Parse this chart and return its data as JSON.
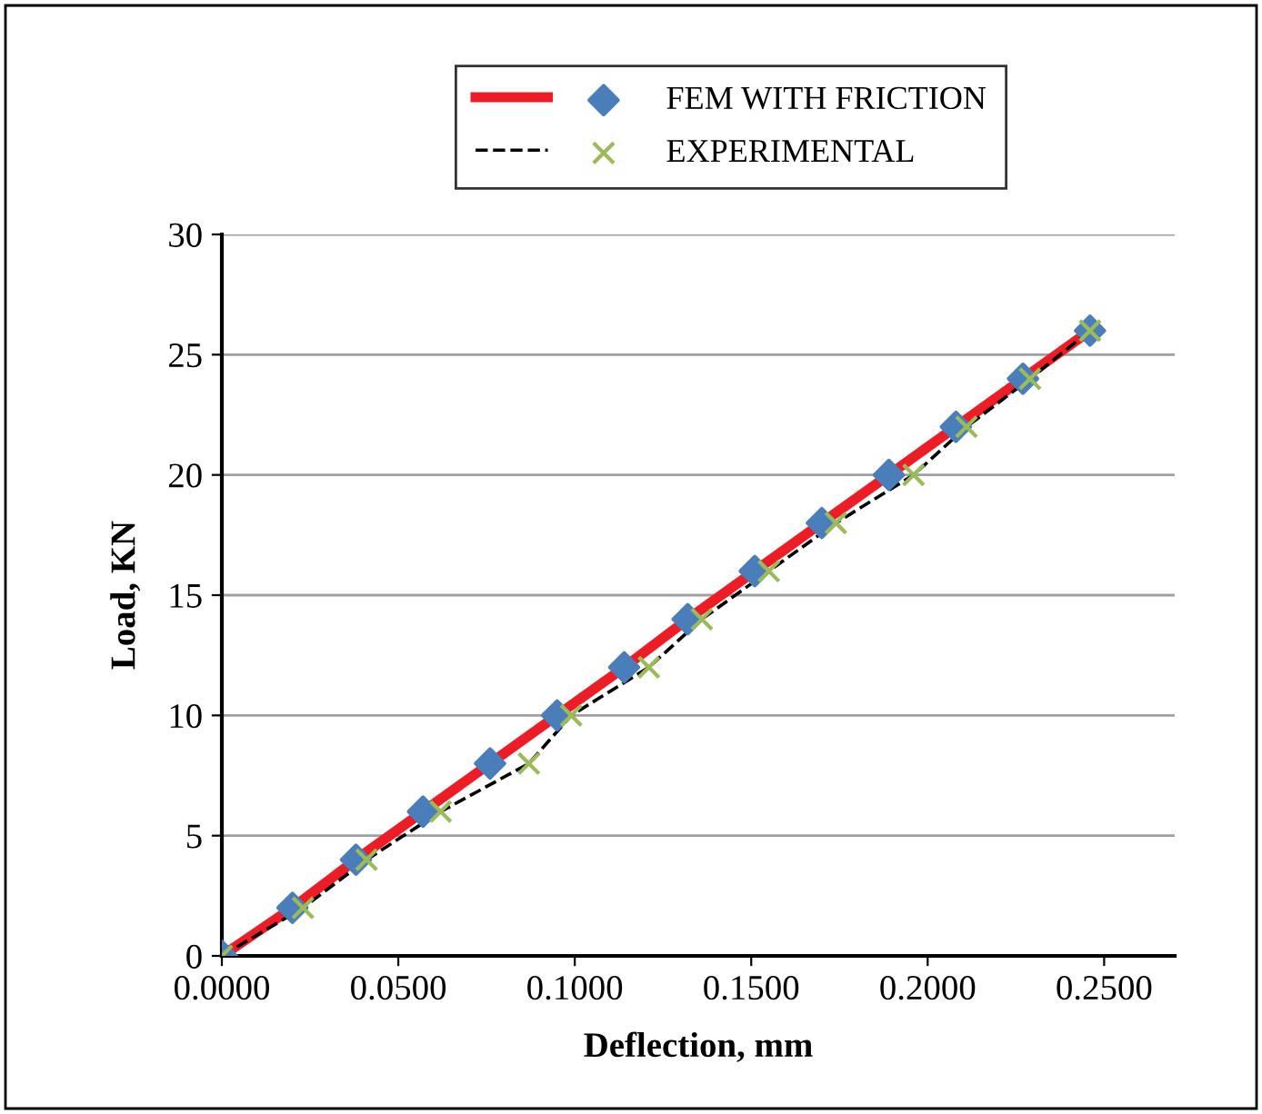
{
  "chart_data": {
    "type": "line",
    "xlabel": "Deflection, mm",
    "ylabel": "Load, KN",
    "series": [
      {
        "name": "FEM WITH FRICTION",
        "color": "#ee1c25",
        "colors": [
          "#4a7ebb",
          "#4a7ebb",
          "#4a7ebb",
          "#4a7ebb",
          "#4a7ebb",
          "#4a7ebb",
          "#4a7ebb",
          "#4a7ebb",
          "#4a7ebb",
          "#4a7ebb",
          "#4a7ebb",
          "#4a7ebb",
          "#4a7ebb",
          "#4a7ebb"
        ],
        "marker": "diamond",
        "line_style": "solid",
        "x": [
          0,
          0.02,
          0.038,
          0.057,
          0.076,
          0.095,
          0.114,
          0.132,
          0.151,
          0.17,
          0.189,
          0.208,
          0.227,
          0.246
        ],
        "values": [
          0,
          2,
          4,
          6,
          8,
          10,
          12,
          14,
          16,
          18,
          20,
          22,
          24,
          26
        ]
      },
      {
        "name": "EXPERIMENTAL",
        "color": "#000000",
        "colors": [
          "#9bbb59",
          "#9bbb59",
          "#9bbb59",
          "#9bbb59",
          "#9bbb59",
          "#9bbb59",
          "#9bbb59",
          "#9bbb59",
          "#9bbb59",
          "#9bbb59",
          "#9bbb59",
          "#9bbb59",
          "#9bbb59",
          "#9bbb59"
        ],
        "marker": "cross",
        "line_style": "dashed",
        "x": [
          0,
          0.023,
          0.041,
          0.062,
          0.087,
          0.099,
          0.121,
          0.136,
          0.155,
          0.174,
          0.196,
          0.211,
          0.229,
          0.246
        ],
        "values": [
          0,
          2,
          4,
          6,
          8,
          10,
          12,
          14,
          16,
          18,
          20,
          22,
          24,
          26
        ]
      }
    ],
    "xlim": [
      0,
      0.27
    ],
    "xticks": [
      {
        "value": 0,
        "label": "0.0000"
      },
      {
        "value": 0.05,
        "label": "0.0500"
      },
      {
        "value": 0.1,
        "label": "0.1000"
      },
      {
        "value": 0.15,
        "label": "0.1500"
      },
      {
        "value": 0.2,
        "label": "0.2000"
      },
      {
        "value": 0.25,
        "label": "0.2500"
      }
    ],
    "ylim": [
      0,
      30
    ],
    "yticks": [
      0,
      5,
      10,
      15,
      20,
      25,
      30
    ],
    "grid": "y",
    "legend": "top"
  }
}
